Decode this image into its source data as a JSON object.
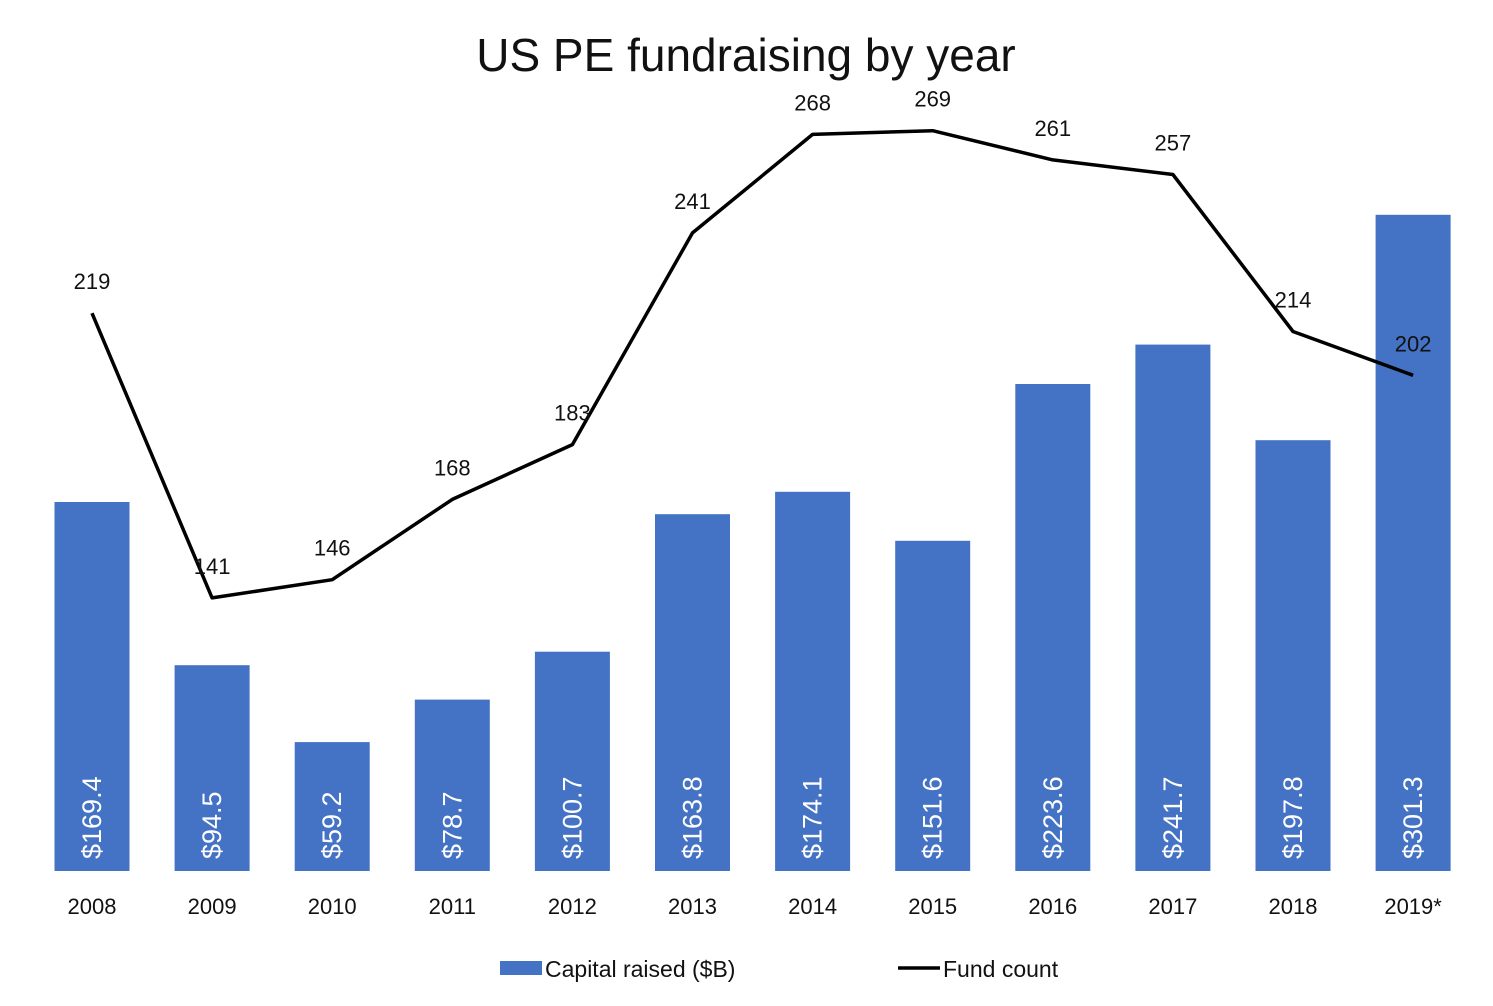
{
  "chart_data": {
    "type": "bar",
    "title": "US PE fundraising by year",
    "xlabel": "",
    "ylabel": "",
    "categories": [
      "2008",
      "2009",
      "2010",
      "2011",
      "2012",
      "2013",
      "2014",
      "2015",
      "2016",
      "2017",
      "2018",
      "2019*"
    ],
    "series": [
      {
        "name": "Capital raised ($B)",
        "type": "bar",
        "color": "#4472C4",
        "values": [
          169.4,
          94.5,
          59.2,
          78.7,
          100.7,
          163.8,
          174.1,
          151.6,
          223.6,
          241.7,
          197.8,
          301.3
        ],
        "labels": [
          "$169.4",
          "$94.5",
          "$59.2",
          "$78.7",
          "$100.7",
          "$163.8",
          "$174.1",
          "$151.6",
          "$223.6",
          "$241.7",
          "$197.8",
          "$301.3"
        ]
      },
      {
        "name": "Fund count",
        "type": "line",
        "color": "#000000",
        "values": [
          219,
          141,
          146,
          168,
          183,
          241,
          268,
          269,
          261,
          257,
          214,
          202
        ],
        "labels": [
          "219",
          "141",
          "146",
          "168",
          "183",
          "241",
          "268",
          "269",
          "261",
          "257",
          "214",
          "202"
        ]
      }
    ],
    "grid": false,
    "legend_position": "bottom"
  }
}
